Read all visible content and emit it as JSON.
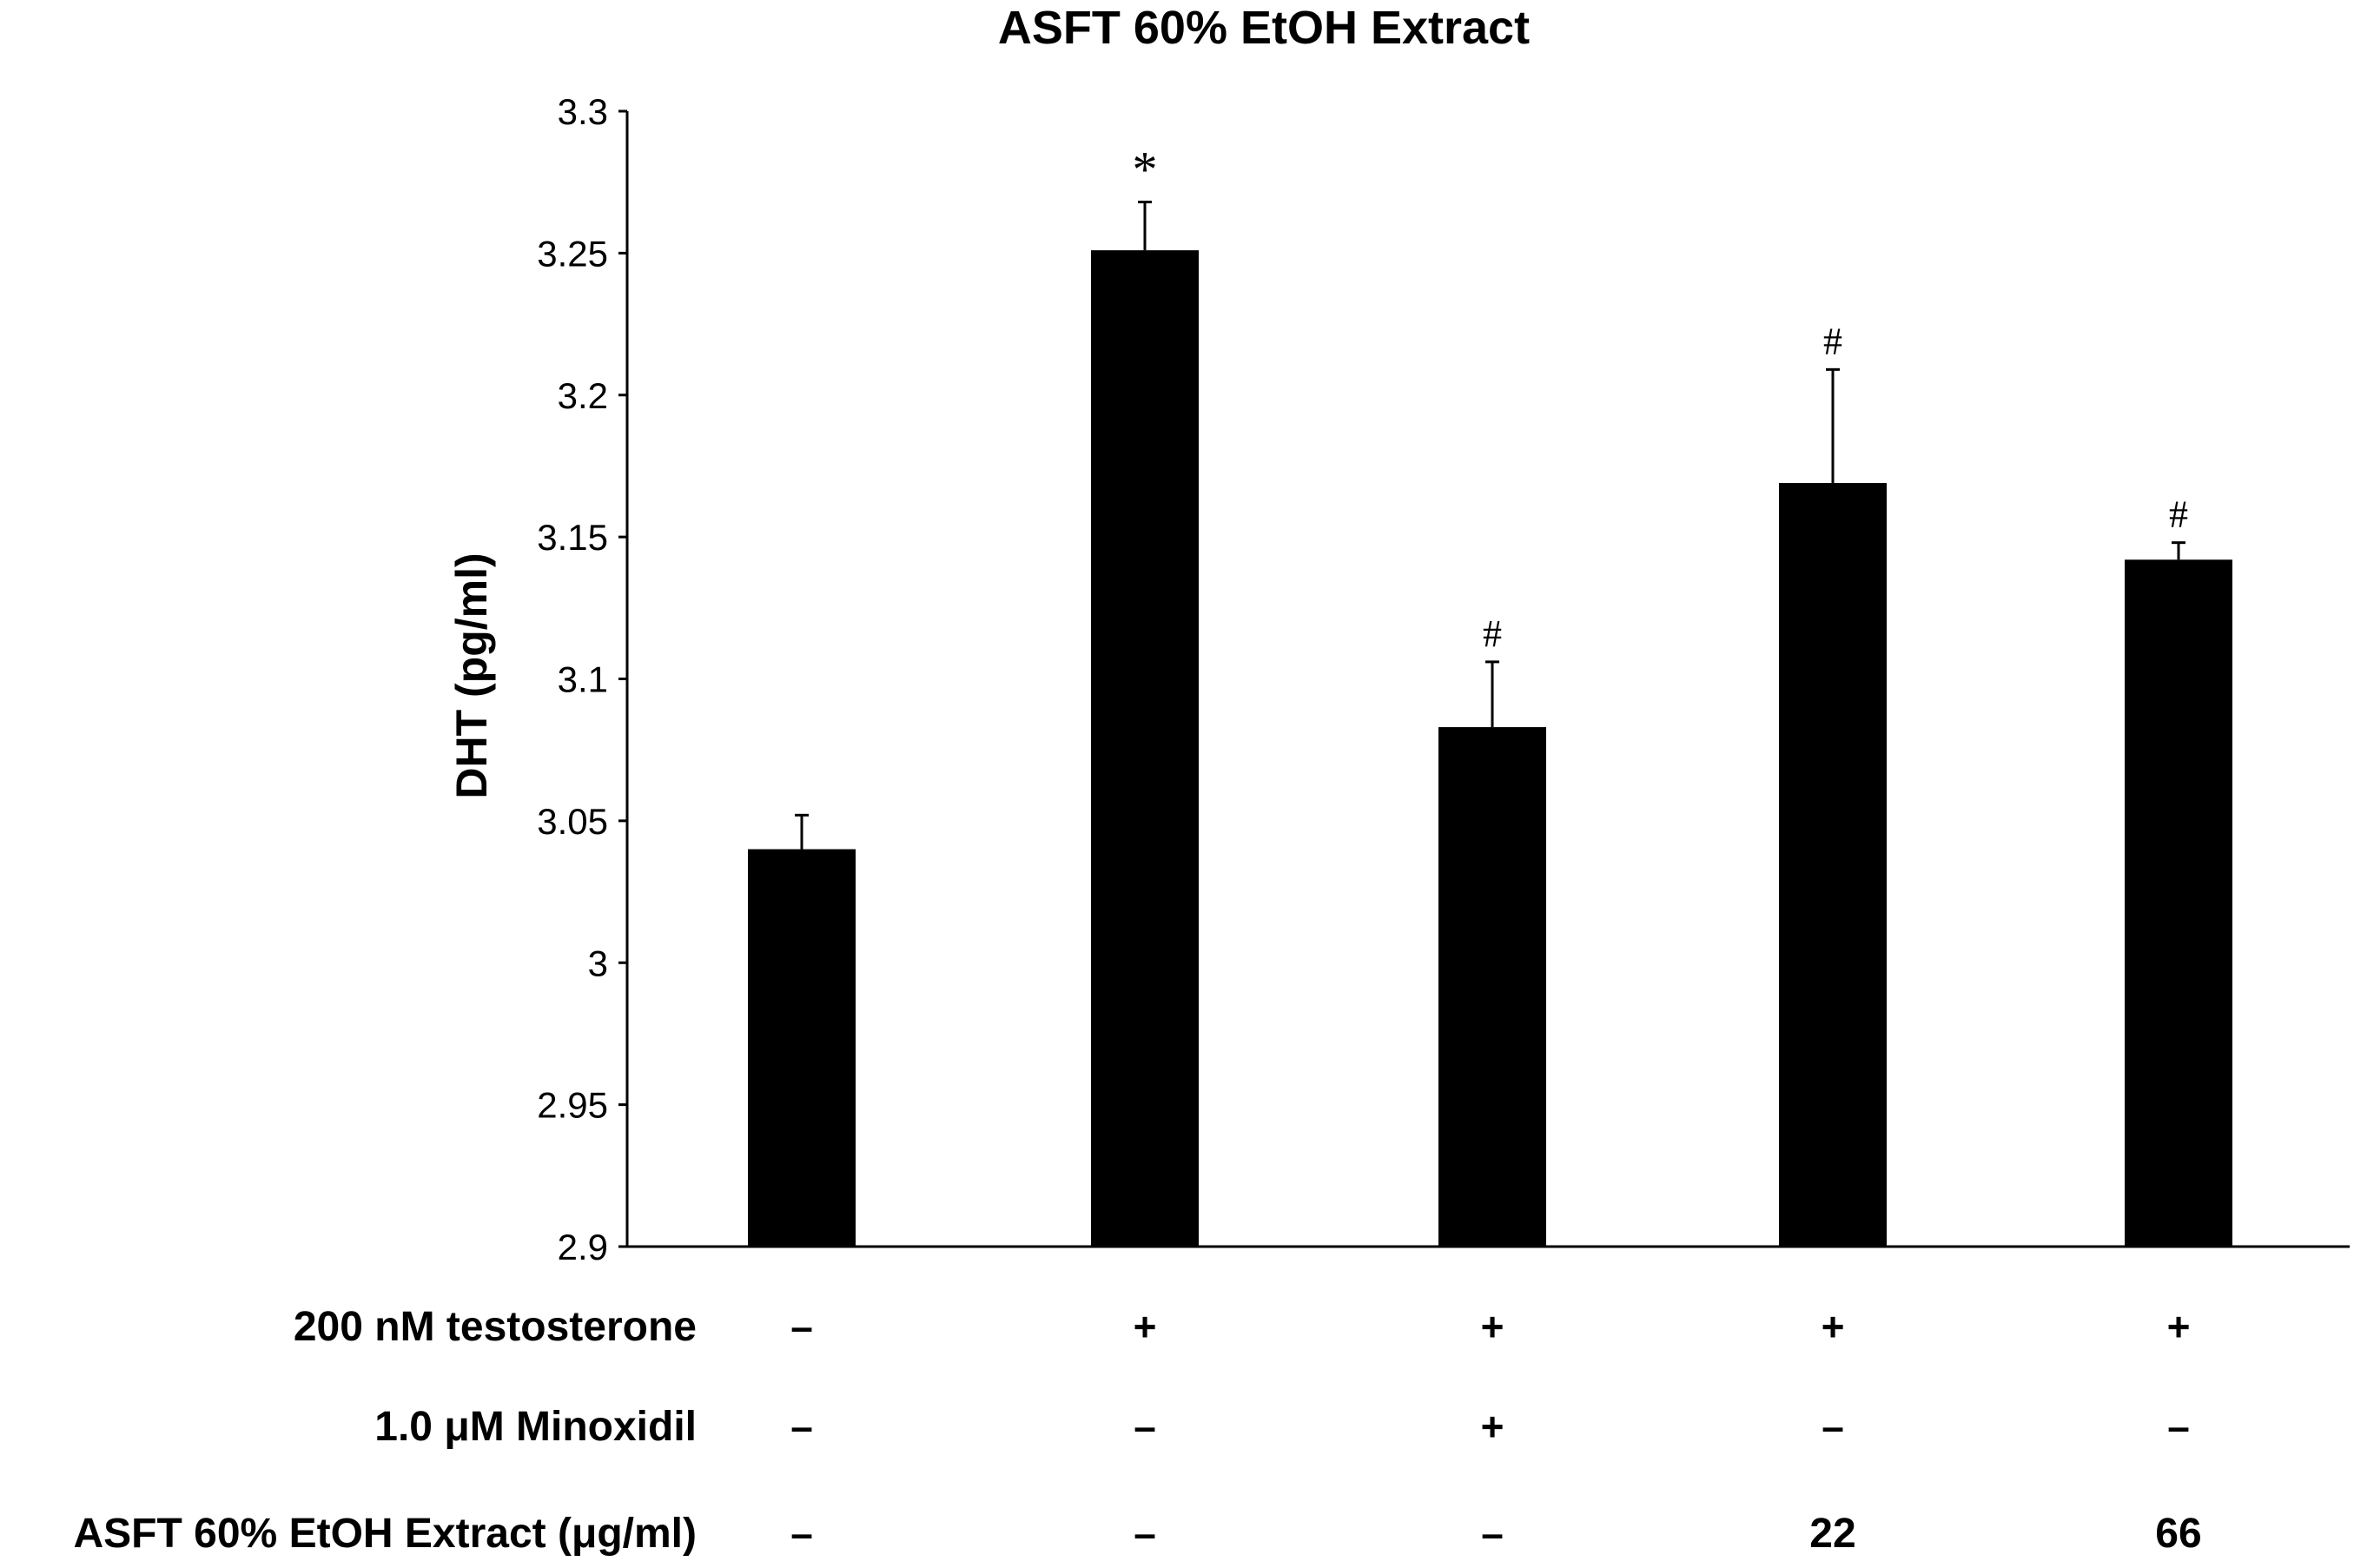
{
  "chart_data": {
    "type": "bar",
    "title": "ASFT 60% EtOH Extract",
    "ylabel": "DHT (pg/ml)",
    "ylim": [
      2.9,
      3.3
    ],
    "yticks": [
      "2.9",
      "2.95",
      "3",
      "3.05",
      "3.1",
      "3.15",
      "3.2",
      "3.25",
      "3.3"
    ],
    "bar_color": "#000000",
    "grid": false,
    "groups": [
      {
        "value": 3.04,
        "error": 0.012,
        "annotation": ""
      },
      {
        "value": 3.251,
        "error": 0.017,
        "annotation": "*"
      },
      {
        "value": 3.083,
        "error": 0.023,
        "annotation": "#"
      },
      {
        "value": 3.169,
        "error": 0.04,
        "annotation": "#"
      },
      {
        "value": 3.142,
        "error": 0.006,
        "annotation": "#"
      }
    ],
    "condition_rows": [
      {
        "label": "200 nM testosterone",
        "values": [
          "–",
          "+",
          "+",
          "+",
          "+"
        ]
      },
      {
        "label": "1.0 μM Minoxidil",
        "values": [
          "–",
          "–",
          "+",
          "–",
          "–"
        ]
      },
      {
        "label": "ASFT 60% EtOH Extract (μg/ml)",
        "values": [
          "–",
          "–",
          "–",
          "22",
          "66"
        ]
      }
    ]
  }
}
